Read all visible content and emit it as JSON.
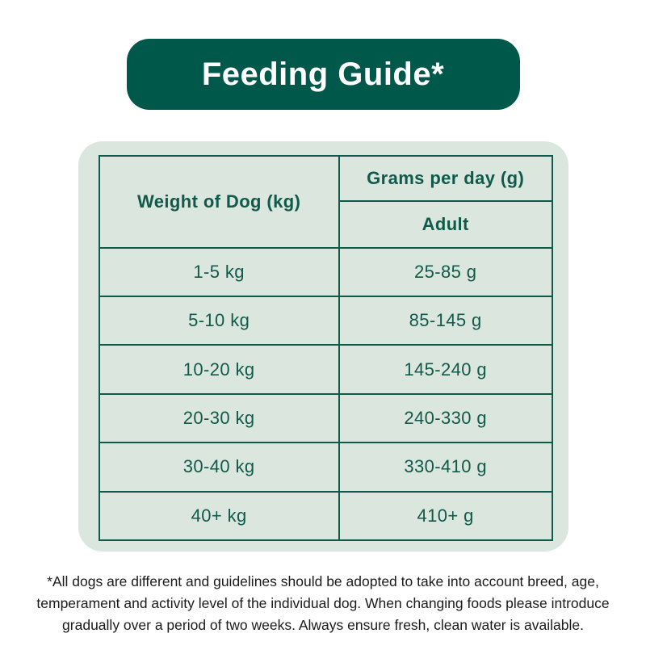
{
  "banner": {
    "title": "Feeding Guide*"
  },
  "table": {
    "weight_header": "Weight of Dog (kg)",
    "grams_header": "Grams per day (g)",
    "grams_subheader": "Adult",
    "rows": [
      {
        "weight": "1-5 kg",
        "grams": "25-85 g"
      },
      {
        "weight": "5-10 kg",
        "grams": "85-145 g"
      },
      {
        "weight": "10-20 kg",
        "grams": "145-240 g"
      },
      {
        "weight": "20-30 kg",
        "grams": "240-330 g"
      },
      {
        "weight": "30-40 kg",
        "grams": "330-410 g"
      },
      {
        "weight": "40+ kg",
        "grams": "410+ g"
      }
    ]
  },
  "footnote": {
    "lines": [
      "*All dogs are different and guidelines should be adopted to take into account breed, age,",
      "temperament and activity level of the individual dog. When changing foods please introduce",
      "gradually over a period of two weeks. Always ensure fresh, clean water is available."
    ]
  },
  "colors": {
    "banner_green": "#00584a",
    "table_green": "#0f5a4a",
    "card_mint": "#dbe7de",
    "footnote_text": "#1b1b1b"
  }
}
